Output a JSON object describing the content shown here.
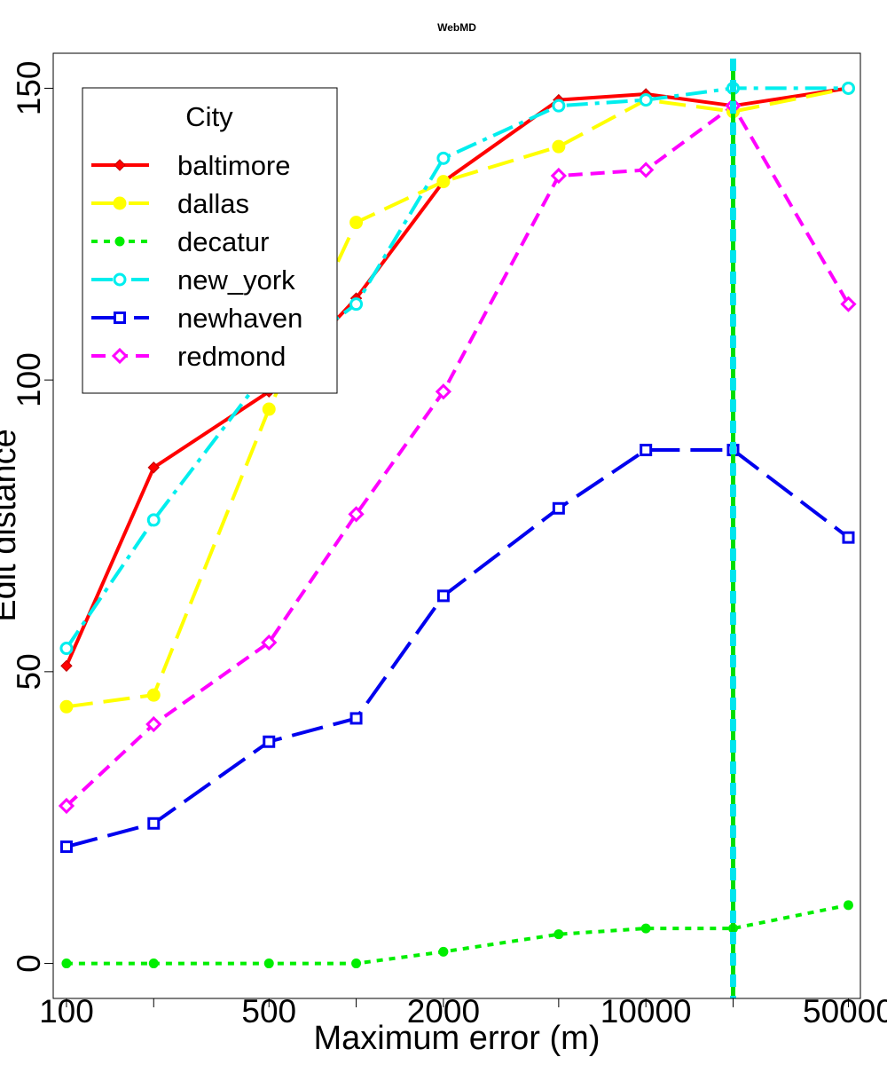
{
  "chart_data": {
    "type": "line",
    "title": "WebMD",
    "xlabel": "Maximum error (m)",
    "ylabel": "Edit distance",
    "x_scale": "log",
    "x": [
      100,
      200,
      500,
      1000,
      2000,
      5000,
      10000,
      20000,
      50000
    ],
    "xticks": [
      100,
      200,
      500,
      1000,
      2000,
      5000,
      10000,
      20000,
      50000
    ],
    "xtick_labels": [
      "100",
      "",
      "500",
      "",
      "2000",
      "",
      "10000",
      "",
      "50000"
    ],
    "xlim": [
      90,
      55000
    ],
    "ylim": [
      -6,
      156
    ],
    "yticks": [
      0,
      50,
      100,
      150
    ],
    "ytick_labels": [
      "0",
      "50",
      "100",
      "150"
    ],
    "grid": false,
    "legend_title": "City",
    "legend_position": "top-left",
    "vertical_line": {
      "x": 20000,
      "colors": [
        "#00e5ee",
        "#00dd00"
      ]
    },
    "series": [
      {
        "name": "baltimore",
        "color": "#ff0000",
        "dash": "",
        "marker": "diamond-filled",
        "values": [
          51,
          85,
          98,
          114,
          134,
          148,
          149,
          147,
          150
        ]
      },
      {
        "name": "dallas",
        "color": "#ffff00",
        "dash": "30 12",
        "marker": "circle-filled",
        "values": [
          44,
          46,
          95,
          127,
          134,
          140,
          148,
          146,
          150
        ]
      },
      {
        "name": "decatur",
        "color": "#00ee00",
        "dash": "7 7",
        "marker": "dot-filled",
        "values": [
          0,
          0,
          0,
          0,
          2,
          5,
          6,
          6,
          10
        ]
      },
      {
        "name": "new_york",
        "color": "#00eeee",
        "dash": "24 8 5 8",
        "marker": "circle-open",
        "values": [
          54,
          76,
          102,
          113,
          138,
          147,
          148,
          150,
          150
        ]
      },
      {
        "name": "newhaven",
        "color": "#0000ee",
        "dash": "36 12",
        "marker": "square-open",
        "values": [
          20,
          24,
          38,
          42,
          63,
          78,
          88,
          88,
          73
        ]
      },
      {
        "name": "redmond",
        "color": "#ff00ff",
        "dash": "16 9",
        "marker": "diamond-open",
        "values": [
          27,
          41,
          55,
          77,
          98,
          135,
          136,
          147,
          113
        ]
      }
    ]
  }
}
